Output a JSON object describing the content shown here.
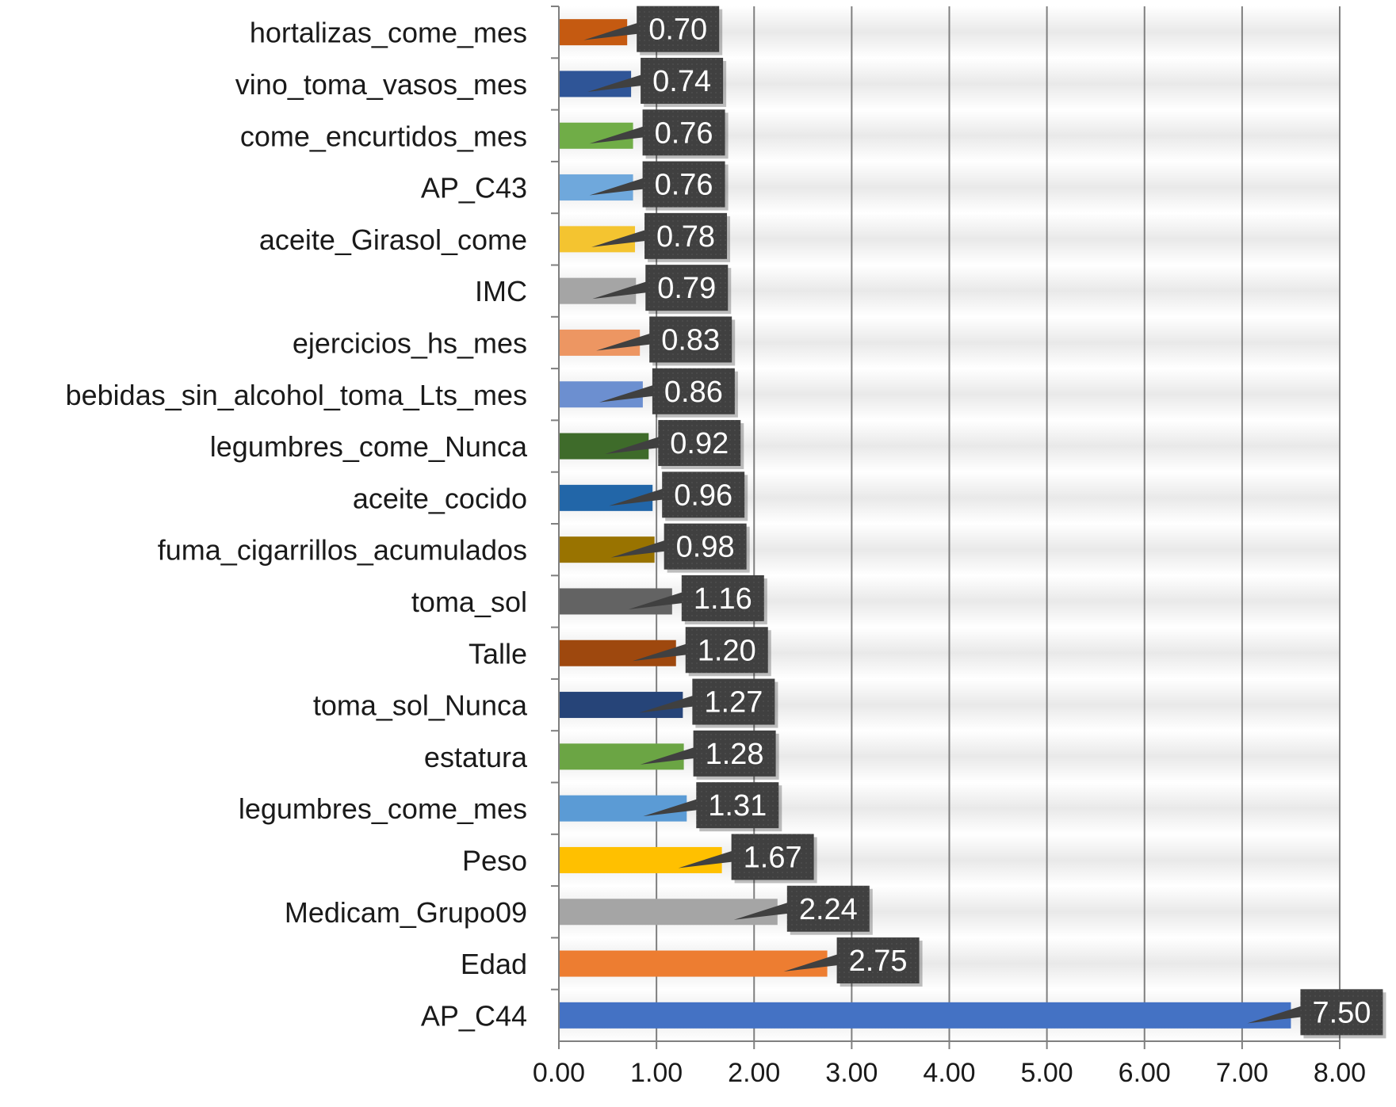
{
  "chart_data": {
    "type": "bar",
    "orientation": "horizontal",
    "title": "",
    "xlabel": "",
    "ylabel": "",
    "xlim": [
      0,
      8
    ],
    "x_ticks": [
      "0.00",
      "1.00",
      "2.00",
      "3.00",
      "4.00",
      "5.00",
      "6.00",
      "7.00",
      "8.00"
    ],
    "grid": true,
    "legend": "none",
    "categories": [
      "hortalizas_come_mes",
      "vino_toma_vasos_mes",
      "come_encurtidos_mes",
      "AP_C43",
      "aceite_Girasol_come",
      "IMC",
      "ejercicios_hs_mes",
      "bebidas_sin_alcohol_toma_Lts_mes",
      "legumbres_come_Nunca",
      "aceite_cocido",
      "fuma_cigarrillos_acumulados",
      "toma_sol",
      "Talle",
      "toma_sol_Nunca",
      "estatura",
      "legumbres_come_mes",
      "Peso",
      "Medicam_Grupo09",
      "Edad",
      "AP_C44"
    ],
    "values": [
      0.7,
      0.74,
      0.76,
      0.76,
      0.78,
      0.79,
      0.83,
      0.86,
      0.92,
      0.96,
      0.98,
      1.16,
      1.2,
      1.27,
      1.28,
      1.31,
      1.67,
      2.24,
      2.75,
      7.5
    ],
    "value_labels": [
      "0.70",
      "0.74",
      "0.76",
      "0.76",
      "0.78",
      "0.79",
      "0.83",
      "0.86",
      "0.92",
      "0.96",
      "0.98",
      "1.16",
      "1.20",
      "1.27",
      "1.28",
      "1.31",
      "1.67",
      "2.24",
      "2.75",
      "7.50"
    ],
    "bar_colors": [
      "#C55A11",
      "#2F5597",
      "#70AD47",
      "#6FA8DC",
      "#F4C430",
      "#A5A5A5",
      "#ED9662",
      "#6C8FD0",
      "#3E6B2A",
      "#2266A8",
      "#997300",
      "#636363",
      "#9E480E",
      "#264478",
      "#6BA544",
      "#5B9BD5",
      "#FFC000",
      "#A5A5A5",
      "#ED7D31",
      "#4472C4"
    ],
    "data_label_bg": "#404040",
    "data_label_color": "#ffffff",
    "grid_color": "#7f7f7f"
  }
}
